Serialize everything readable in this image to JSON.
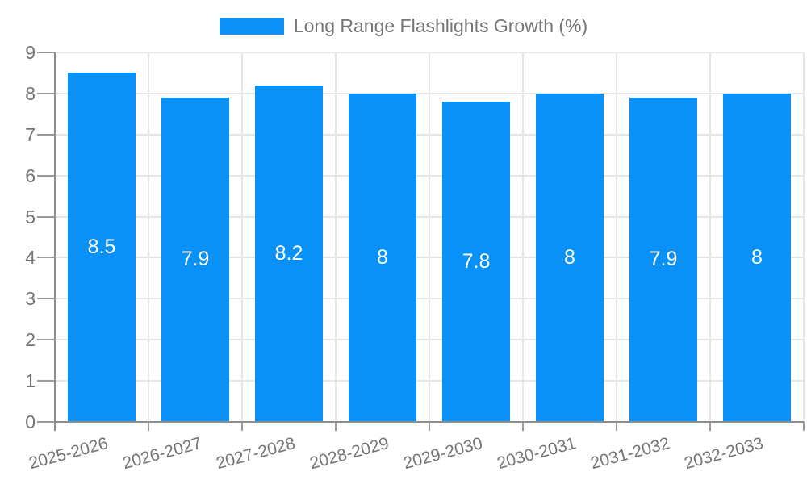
{
  "chart_data": {
    "type": "bar",
    "title": "",
    "legend": {
      "label": "Long Range Flashlights Growth (%)",
      "position": "top-center"
    },
    "categories": [
      "2025-2026",
      "2026-2027",
      "2027-2028",
      "2028-2029",
      "2029-2030",
      "2030-2031",
      "2031-2032",
      "2032-2033"
    ],
    "series": [
      {
        "name": "Long Range Flashlights Growth (%)",
        "values": [
          8.5,
          7.9,
          8.2,
          8,
          7.8,
          8,
          7.9,
          8
        ]
      }
    ],
    "value_labels": [
      "8.5",
      "7.9",
      "8.2",
      "8",
      "7.8",
      "8",
      "7.9",
      "8"
    ],
    "xlabel": "",
    "ylabel": "",
    "ylim": [
      0,
      9
    ],
    "yticks": [
      0,
      1,
      2,
      3,
      4,
      5,
      6,
      7,
      8,
      9
    ],
    "grid": true,
    "colors": {
      "bar": "#0991f8",
      "value_label_text": "#ffffff",
      "gridline": "#e6e6e6",
      "axis": "#8e8e8e",
      "tick": "#9a9a9a",
      "tick_label_text": "#757575",
      "legend_text": "#757575",
      "background": "#ffffff"
    }
  }
}
